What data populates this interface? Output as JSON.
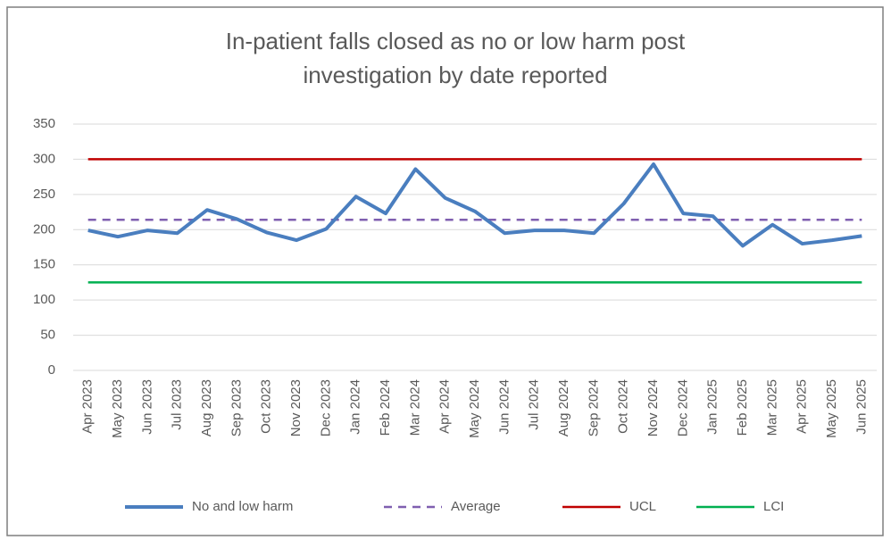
{
  "chart_data": {
    "type": "line",
    "title": [
      "In-patient falls closed as no or low harm post",
      "investigation by date reported"
    ],
    "categories": [
      "Apr 2023",
      "May 2023",
      "Jun 2023",
      "Jul 2023",
      "Aug 2023",
      "Sep 2023",
      "Oct 2023",
      "Nov 2023",
      "Dec 2023",
      "Jan 2024",
      "Feb 2024",
      "Mar 2024",
      "Apr 2024",
      "May 2024",
      "Jun 2024",
      "Jul 2024",
      "Aug 2024",
      "Sep 2024",
      "Oct 2024",
      "Nov 2024",
      "Dec 2024",
      "Jan 2025",
      "Feb 2025",
      "Mar 2025",
      "Apr 2025",
      "May 2025",
      "Jun 2025"
    ],
    "series": [
      {
        "name": "No and low harm",
        "color": "#4a7ebf",
        "style": "solid",
        "width": 4,
        "values": [
          199,
          190,
          199,
          195,
          228,
          215,
          196,
          185,
          201,
          247,
          223,
          286,
          245,
          226,
          195,
          199,
          199,
          195,
          237,
          293,
          223,
          219,
          177,
          207,
          180,
          185,
          191
        ]
      },
      {
        "name": "Average",
        "color": "#7f5fb0",
        "style": "dashed",
        "width": 2.5,
        "values": [
          214,
          214,
          214,
          214,
          214,
          214,
          214,
          214,
          214,
          214,
          214,
          214,
          214,
          214,
          214,
          214,
          214,
          214,
          214,
          214,
          214,
          214,
          214,
          214,
          214,
          214,
          214
        ]
      },
      {
        "name": "UCL",
        "color": "#c00000",
        "style": "solid",
        "width": 2.5,
        "values": [
          300,
          300,
          300,
          300,
          300,
          300,
          300,
          300,
          300,
          300,
          300,
          300,
          300,
          300,
          300,
          300,
          300,
          300,
          300,
          300,
          300,
          300,
          300,
          300,
          300,
          300,
          300
        ]
      },
      {
        "name": "LCI",
        "color": "#00b050",
        "style": "solid",
        "width": 2.5,
        "values": [
          125,
          125,
          125,
          125,
          125,
          125,
          125,
          125,
          125,
          125,
          125,
          125,
          125,
          125,
          125,
          125,
          125,
          125,
          125,
          125,
          125,
          125,
          125,
          125,
          125,
          125,
          125
        ]
      }
    ],
    "ylim": [
      0,
      350
    ],
    "yticks": [
      0,
      50,
      100,
      150,
      200,
      250,
      300,
      350
    ],
    "grid": true,
    "legend": "bottom"
  }
}
